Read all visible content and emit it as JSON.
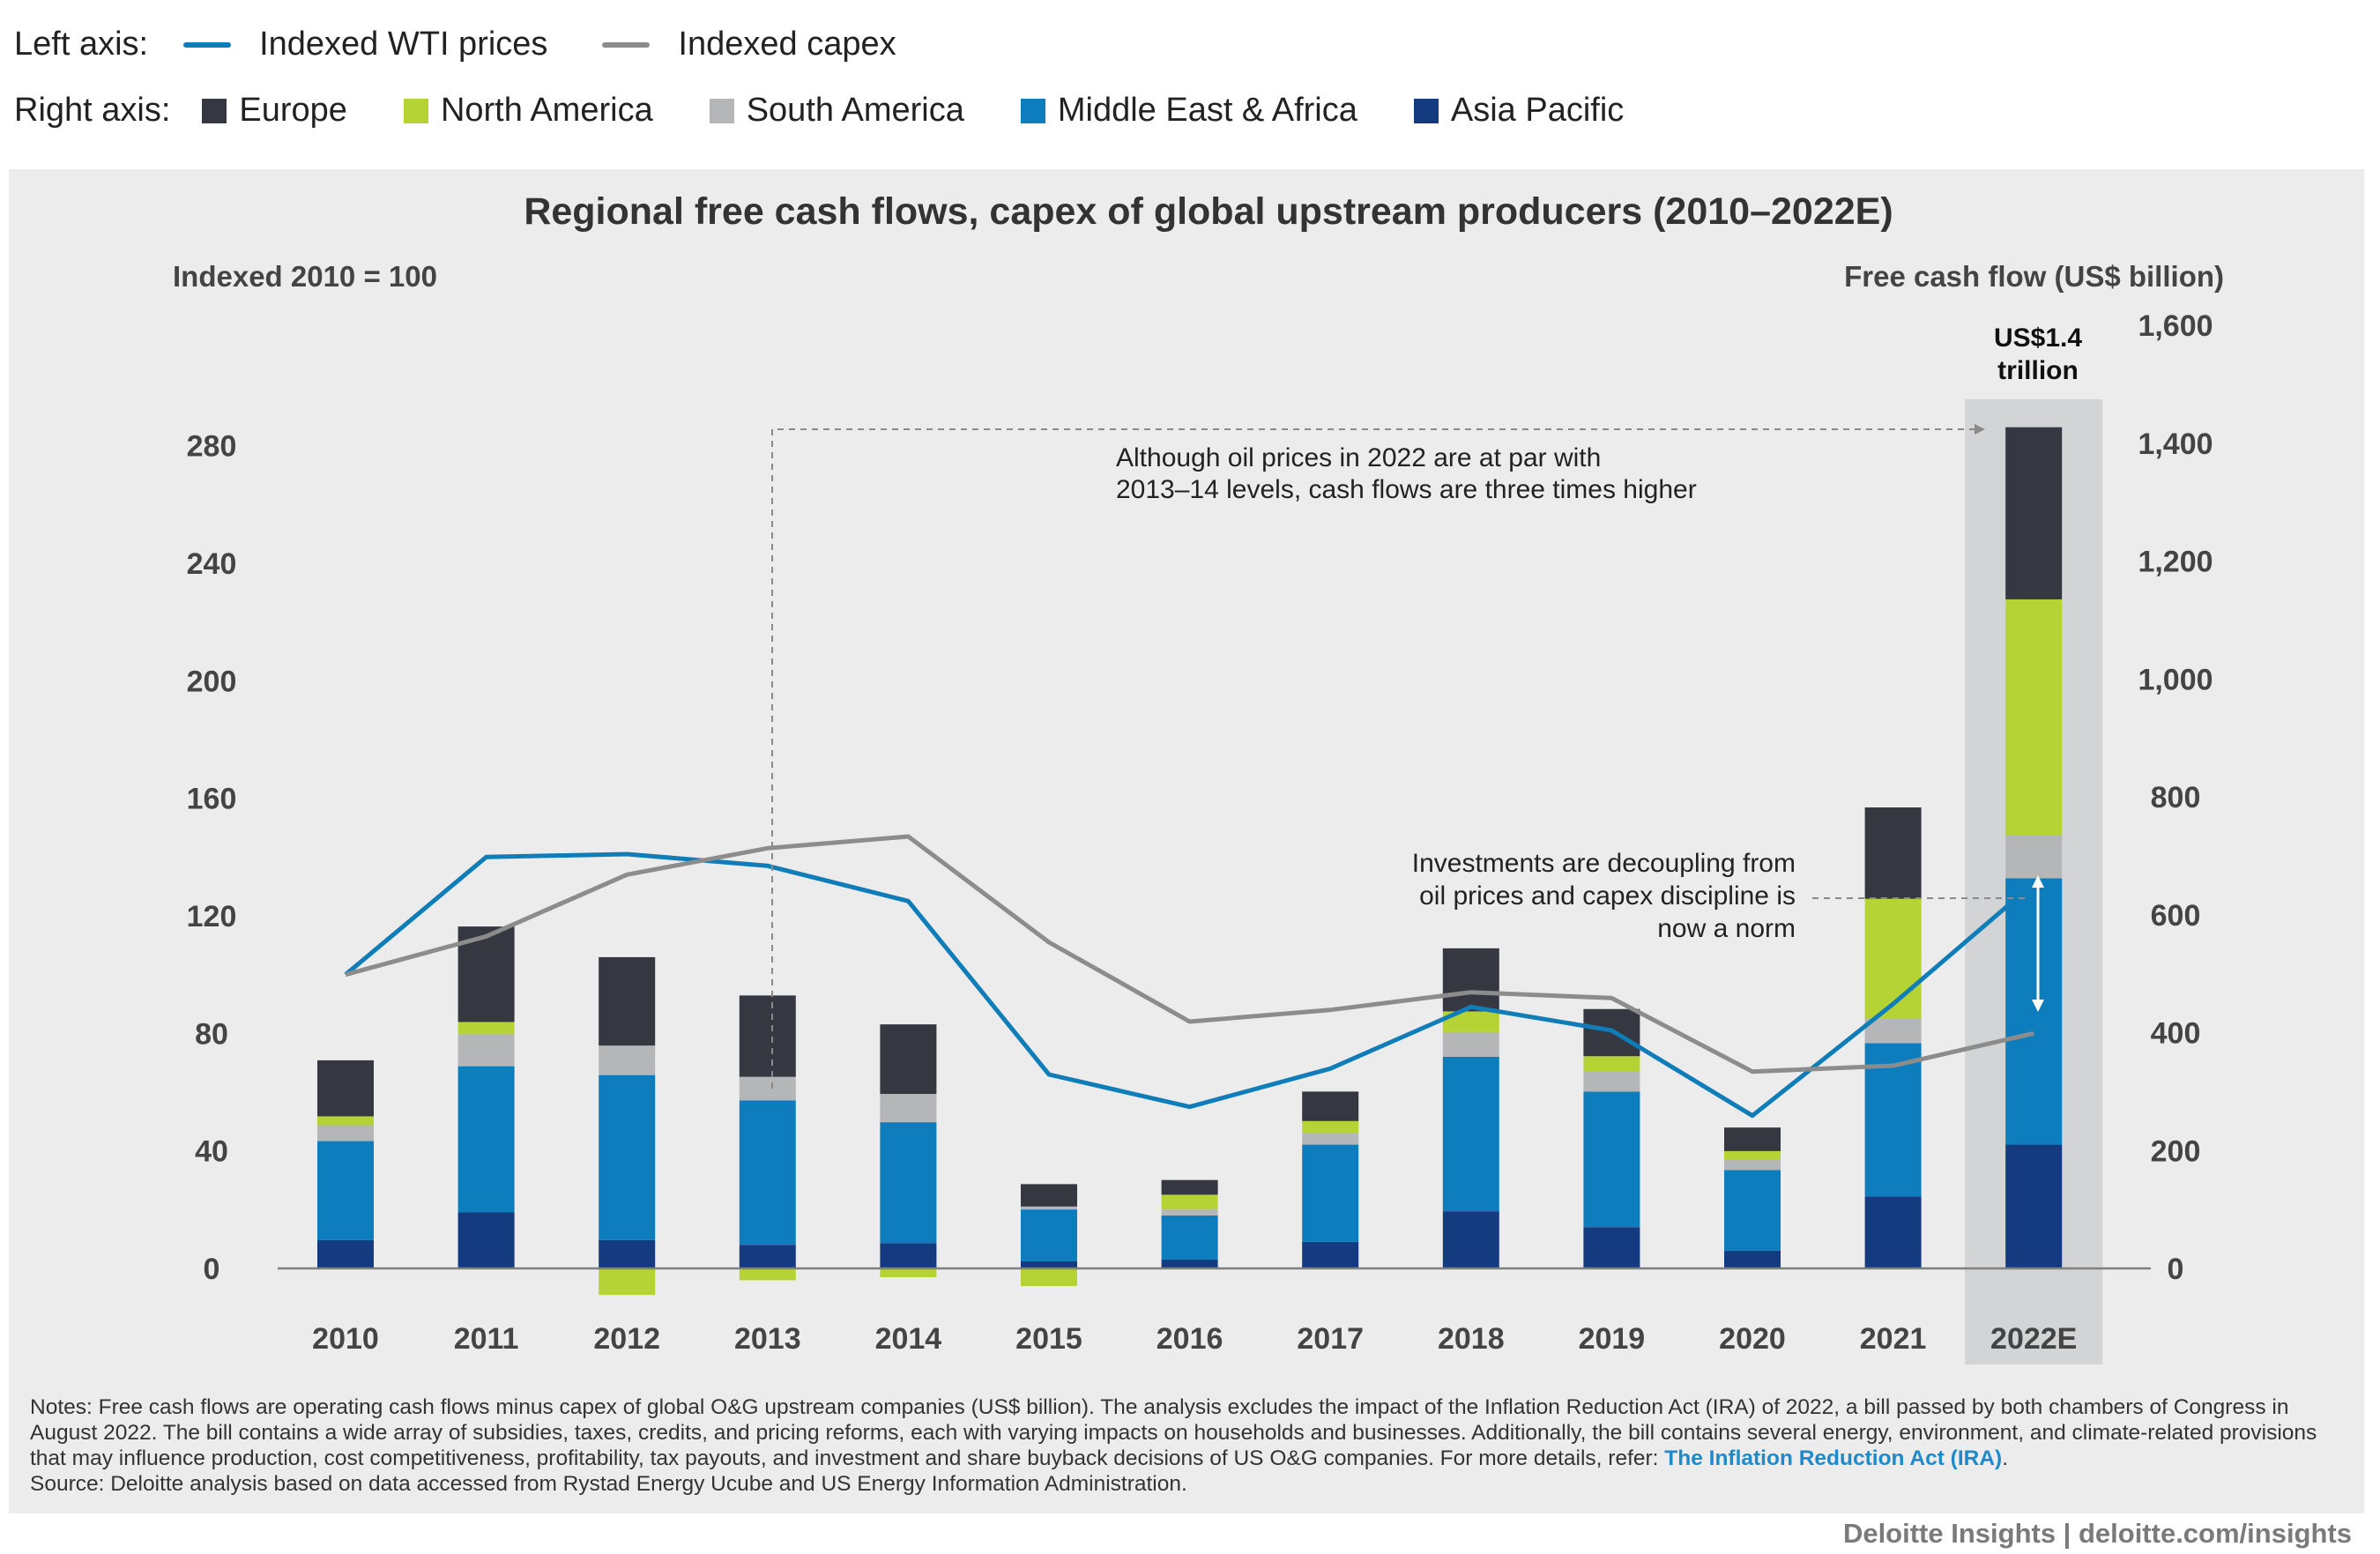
{
  "legend": {
    "left_label": "Left axis:",
    "right_label": "Right axis:",
    "lines": [
      {
        "name": "Indexed WTI prices",
        "color": "#0f7db8"
      },
      {
        "name": "Indexed capex",
        "color": "#8c8c8c"
      }
    ],
    "regions": [
      {
        "name": "Europe",
        "color": "#353841"
      },
      {
        "name": "North America",
        "color": "#b5d334"
      },
      {
        "name": "South America",
        "color": "#b4b6b8"
      },
      {
        "name": "Middle East & Africa",
        "color": "#0e7dbd"
      },
      {
        "name": "Asia Pacific",
        "color": "#143a80"
      }
    ]
  },
  "chart_data": {
    "type": "bar",
    "title": "Regional free cash flows, capex of global upstream producers (2010–2022E)",
    "left_axis_label": "Indexed 2010 = 100",
    "right_axis_label": "Free cash flow (US$ billion)",
    "left_ticks": [
      "0",
      "40",
      "80",
      "120",
      "160",
      "200",
      "240",
      "280"
    ],
    "left_range": [
      0,
      300
    ],
    "right_ticks": [
      "0",
      "200",
      "400",
      "600",
      "800",
      "1,000",
      "1,200",
      "1,400",
      "1,600"
    ],
    "right_range": [
      0,
      1600
    ],
    "categories": [
      "2010",
      "2011",
      "2012",
      "2013",
      "2014",
      "2015",
      "2016",
      "2017",
      "2018",
      "2019",
      "2020",
      "2021",
      "2022E"
    ],
    "highlight_category": "2022E",
    "highlight_label_line1": "US$1.4",
    "highlight_label_line2": "trillion",
    "bar_series": [
      {
        "name": "Asia Pacific",
        "color": "#143a80",
        "values": [
          48,
          95,
          48,
          40,
          43,
          12,
          15,
          45,
          97,
          70,
          30,
          122,
          210
        ]
      },
      {
        "name": "Middle East & Africa",
        "color": "#0e7dbd",
        "values": [
          168,
          248,
          280,
          245,
          205,
          88,
          75,
          165,
          262,
          230,
          137,
          260,
          452
        ]
      },
      {
        "name": "South America",
        "color": "#b4b6b8",
        "values": [
          27,
          55,
          50,
          40,
          48,
          5,
          10,
          20,
          42,
          35,
          18,
          42,
          73
        ]
      },
      {
        "name": "North America",
        "color": "#b5d334",
        "values": [
          15,
          20,
          -45,
          -20,
          -15,
          -30,
          25,
          20,
          35,
          25,
          14,
          203,
          400
        ]
      },
      {
        "name": "Europe",
        "color": "#353841",
        "values": [
          95,
          162,
          150,
          138,
          118,
          38,
          25,
          50,
          107,
          80,
          40,
          155,
          292
        ]
      }
    ],
    "line_series": [
      {
        "name": "Indexed WTI prices",
        "color": "#0f7db8",
        "values": [
          100,
          140,
          141,
          137,
          125,
          66,
          55,
          68,
          89,
          81,
          52,
          90,
          131
        ]
      },
      {
        "name": "Indexed capex",
        "color": "#8c8c8c",
        "values": [
          100,
          113,
          134,
          143,
          147,
          111,
          84,
          88,
          94,
          92,
          67,
          69,
          80
        ]
      }
    ],
    "annotations": {
      "top_line1": "Although oil prices in 2022 are at par with",
      "top_line2": "2013–14 levels, cash flows are three times higher",
      "side_line1": "Investments are decoupling from",
      "side_line2": "oil prices and capex discipline is",
      "side_line3": "now a norm"
    }
  },
  "notes": {
    "text": "Notes: Free cash flows are operating cash flows minus capex of global O&G upstream companies (US$ billion). The analysis excludes the impact of the Inflation Reduction Act (IRA) of 2022, a bill passed by both chambers of Congress in August 2022. The bill contains a wide array of subsidies, taxes, credits, and pricing reforms, each with varying impacts on households and businesses. Additionally, the bill contains several energy, environment, and climate-related provisions that may influence production, cost competitiveness, profitability, tax payouts, and investment and share buyback decisions of US O&G companies. For more details, refer: ",
    "link_text": "The Inflation Reduction Act (IRA)",
    "link_suffix": ".",
    "source": "Source: Deloitte analysis based on data accessed from Rystad Energy Ucube and US Energy Information Administration."
  },
  "footer": "Deloitte Insights | deloitte.com/insights"
}
